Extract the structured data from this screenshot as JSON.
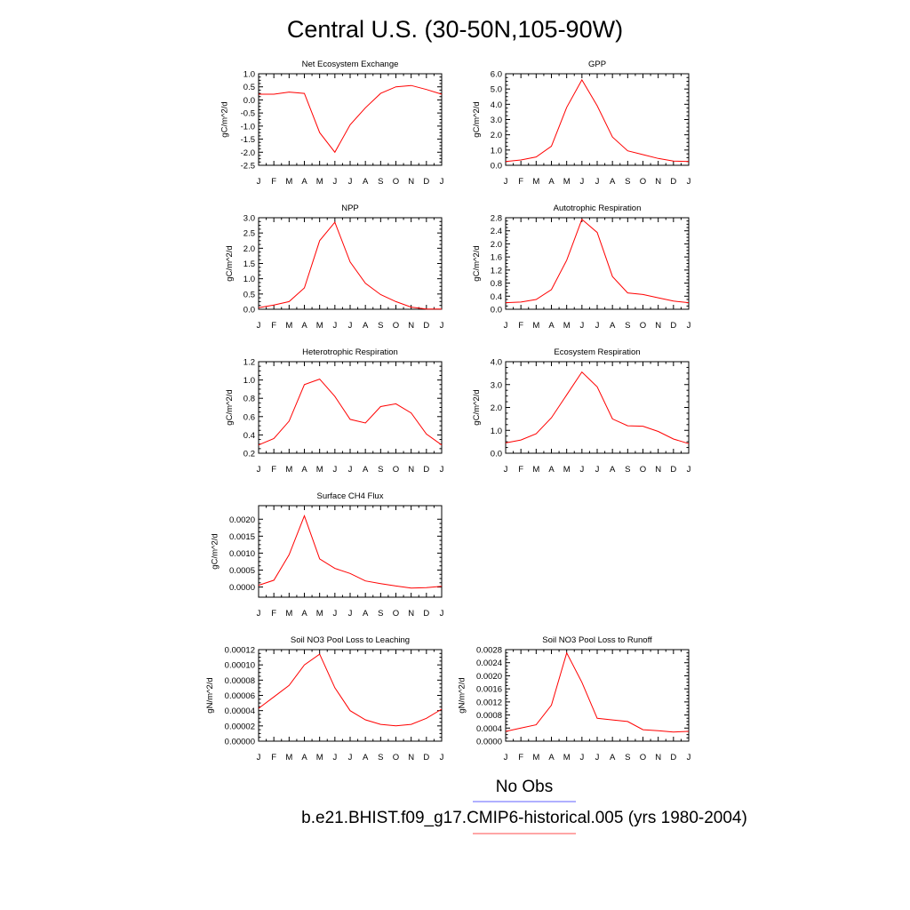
{
  "figure": {
    "title": "Central U.S. (30-50N,105-90W)",
    "legend": [
      {
        "label": "No Obs",
        "color": "#8080ff"
      },
      {
        "label": "b.e21.BHIST.f09_g17.CMIP6-historical.005 (yrs 1980-2004)",
        "color": "#ff7070"
      }
    ]
  },
  "chart_data": [
    {
      "type": "line",
      "title": "Net Ecosystem Exchange",
      "ylabel": "gC/m^2/d",
      "categories": [
        "J",
        "F",
        "M",
        "A",
        "M",
        "J",
        "J",
        "A",
        "S",
        "O",
        "N",
        "D",
        "J"
      ],
      "ylim": [
        -2.5,
        1.0
      ],
      "yticks": [
        1.0,
        0.5,
        0.0,
        -0.5,
        -1.0,
        -1.5,
        -2.0,
        -2.5
      ],
      "ytick_labels": [
        "1.0",
        "0.5",
        "0.0",
        "-0.5",
        "-1.0",
        "-1.5",
        "-2.0",
        "-2.5"
      ],
      "series": [
        {
          "color": "#ff0000",
          "values": [
            0.22,
            0.22,
            0.3,
            0.25,
            -1.25,
            -2.0,
            -0.95,
            -0.3,
            0.25,
            0.5,
            0.55,
            0.4,
            0.22
          ]
        }
      ]
    },
    {
      "type": "line",
      "title": "GPP",
      "ylabel": "gC/m^2/d",
      "categories": [
        "J",
        "F",
        "M",
        "A",
        "M",
        "J",
        "J",
        "A",
        "S",
        "O",
        "N",
        "D",
        "J"
      ],
      "ylim": [
        0,
        6.0
      ],
      "yticks": [
        0,
        1,
        2,
        3,
        4,
        5,
        6
      ],
      "ytick_labels": [
        "0.0",
        "1.0",
        "2.0",
        "3.0",
        "4.0",
        "5.0",
        "6.0"
      ],
      "series": [
        {
          "color": "#ff0000",
          "values": [
            0.25,
            0.35,
            0.55,
            1.25,
            3.8,
            5.6,
            3.9,
            1.85,
            0.95,
            0.7,
            0.45,
            0.28,
            0.25
          ]
        }
      ]
    },
    {
      "type": "line",
      "title": "NPP",
      "ylabel": "gC/m^2/d",
      "categories": [
        "J",
        "F",
        "M",
        "A",
        "M",
        "J",
        "J",
        "A",
        "S",
        "O",
        "N",
        "D",
        "J"
      ],
      "ylim": [
        0,
        3.0
      ],
      "yticks": [
        0,
        0.5,
        1.0,
        1.5,
        2.0,
        2.5,
        3.0
      ],
      "ytick_labels": [
        "0.0",
        "0.5",
        "1.0",
        "1.5",
        "2.0",
        "2.5",
        "3.0"
      ],
      "series": [
        {
          "color": "#ff0000",
          "values": [
            0.05,
            0.14,
            0.25,
            0.7,
            2.25,
            2.85,
            1.55,
            0.85,
            0.48,
            0.25,
            0.07,
            0.01,
            0.01
          ]
        }
      ]
    },
    {
      "type": "line",
      "title": "Autotrophic Respiration",
      "ylabel": "gC/m^2/d",
      "categories": [
        "J",
        "F",
        "M",
        "A",
        "M",
        "J",
        "J",
        "A",
        "S",
        "O",
        "N",
        "D",
        "J"
      ],
      "ylim": [
        0,
        2.8
      ],
      "yticks": [
        0,
        0.4,
        0.8,
        1.2,
        1.6,
        2.0,
        2.4,
        2.8
      ],
      "ytick_labels": [
        "0.0",
        "0.4",
        "0.8",
        "1.2",
        "1.6",
        "2.0",
        "2.4",
        "2.8"
      ],
      "series": [
        {
          "color": "#ff0000",
          "values": [
            0.2,
            0.22,
            0.3,
            0.6,
            1.5,
            2.75,
            2.35,
            1.0,
            0.5,
            0.45,
            0.35,
            0.25,
            0.2
          ]
        }
      ]
    },
    {
      "type": "line",
      "title": "Heterotrophic Respiration",
      "ylabel": "gC/m^2/d",
      "categories": [
        "J",
        "F",
        "M",
        "A",
        "M",
        "J",
        "J",
        "A",
        "S",
        "O",
        "N",
        "D",
        "J"
      ],
      "ylim": [
        0.2,
        1.2
      ],
      "yticks": [
        0.2,
        0.4,
        0.6,
        0.8,
        1.0,
        1.2
      ],
      "ytick_labels": [
        "0.2",
        "0.4",
        "0.6",
        "0.8",
        "1.0",
        "1.2"
      ],
      "series": [
        {
          "color": "#ff0000",
          "values": [
            0.29,
            0.36,
            0.55,
            0.95,
            1.01,
            0.82,
            0.57,
            0.53,
            0.71,
            0.74,
            0.64,
            0.41,
            0.29
          ]
        }
      ]
    },
    {
      "type": "line",
      "title": "Ecosystem Respiration",
      "ylabel": "gC/m^2/d",
      "categories": [
        "J",
        "F",
        "M",
        "A",
        "M",
        "J",
        "J",
        "A",
        "S",
        "O",
        "N",
        "D",
        "J"
      ],
      "ylim": [
        0,
        4.0
      ],
      "yticks": [
        0,
        1,
        2,
        3,
        4
      ],
      "ytick_labels": [
        "0.0",
        "1.0",
        "2.0",
        "3.0",
        "4.0"
      ],
      "series": [
        {
          "color": "#ff0000",
          "values": [
            0.45,
            0.58,
            0.85,
            1.55,
            2.55,
            3.55,
            2.9,
            1.5,
            1.2,
            1.18,
            0.95,
            0.62,
            0.42
          ]
        }
      ]
    },
    {
      "type": "line",
      "title": "Surface CH4 Flux",
      "ylabel": "gC/m^2/d",
      "categories": [
        "J",
        "F",
        "M",
        "A",
        "M",
        "J",
        "J",
        "A",
        "S",
        "O",
        "N",
        "D",
        "J"
      ],
      "ylim": [
        -0.0003,
        0.0024
      ],
      "yticks": [
        0,
        0.0005,
        0.001,
        0.0015,
        0.002
      ],
      "ytick_labels": [
        "0.0000",
        "0.0005",
        "0.0010",
        "0.0015",
        "0.0020"
      ],
      "series": [
        {
          "color": "#ff0000",
          "values": [
            5e-05,
            0.0002,
            0.00095,
            0.0021,
            0.00083,
            0.00055,
            0.0004,
            0.00018,
            0.0001,
            3e-05,
            -3e-05,
            -2e-05,
            2e-05
          ]
        }
      ]
    },
    {
      "type": "line",
      "title": "Soil NO3 Pool Loss to Leaching",
      "ylabel": "gN/m^2/d",
      "categories": [
        "J",
        "F",
        "M",
        "A",
        "M",
        "J",
        "J",
        "A",
        "S",
        "O",
        "N",
        "D",
        "J"
      ],
      "ylim": [
        0,
        0.00012
      ],
      "yticks": [
        0,
        2e-05,
        4e-05,
        6e-05,
        8e-05,
        0.0001,
        0.00012
      ],
      "ytick_labels": [
        "0.00000",
        "0.00002",
        "0.00004",
        "0.00006",
        "0.00008",
        "0.00010",
        "0.00012"
      ],
      "series": [
        {
          "color": "#ff0000",
          "values": [
            4.3e-05,
            5.8e-05,
            7.3e-05,
            0.0001,
            0.000114,
            7e-05,
            4e-05,
            2.8e-05,
            2.2e-05,
            2e-05,
            2.2e-05,
            3e-05,
            4.2e-05
          ]
        }
      ]
    },
    {
      "type": "line",
      "title": "Soil NO3 Pool Loss to Runoff",
      "ylabel": "gN/m^2/d",
      "categories": [
        "J",
        "F",
        "M",
        "A",
        "M",
        "J",
        "J",
        "A",
        "S",
        "O",
        "N",
        "D",
        "J"
      ],
      "ylim": [
        0,
        0.0028
      ],
      "yticks": [
        0,
        0.0004,
        0.0008,
        0.0012,
        0.0016,
        0.002,
        0.0024,
        0.0028
      ],
      "ytick_labels": [
        "0.0000",
        "0.0004",
        "0.0008",
        "0.0012",
        "0.0016",
        "0.0020",
        "0.0024",
        "0.0028"
      ],
      "series": [
        {
          "color": "#ff0000",
          "values": [
            0.0003,
            0.0004,
            0.0005,
            0.0011,
            0.0027,
            0.0018,
            0.0007,
            0.00065,
            0.0006,
            0.00035,
            0.00032,
            0.00028,
            0.0003
          ]
        }
      ]
    }
  ]
}
